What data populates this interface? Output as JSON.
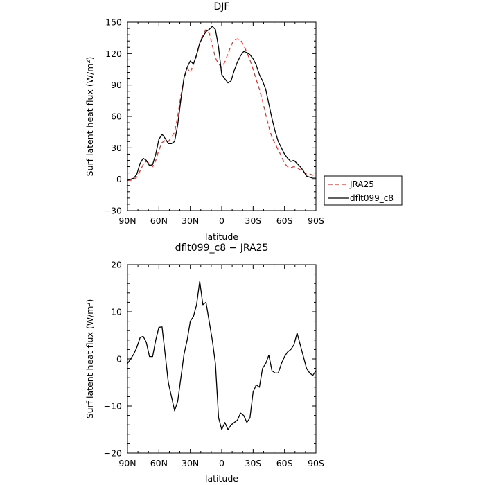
{
  "chart_data": [
    {
      "type": "line",
      "title": "DJF",
      "xlabel": "latitude",
      "ylabel": "Surf latent heat flux (W/m²)",
      "xlim": [
        90,
        -90
      ],
      "ylim": [
        -30,
        150
      ],
      "x_ticks": [
        90,
        60,
        30,
        0,
        -30,
        -60,
        -90
      ],
      "x_tick_labels": [
        "90N",
        "60N",
        "30N",
        "0",
        "30S",
        "60S",
        "90S"
      ],
      "y_ticks": [
        -30,
        0,
        30,
        60,
        90,
        120,
        150
      ],
      "legend": "right",
      "x": [
        90,
        87,
        84,
        81,
        78,
        75,
        72,
        69,
        66,
        63,
        60,
        57,
        54,
        51,
        48,
        45,
        42,
        39,
        36,
        33,
        30,
        27,
        24,
        21,
        18,
        15,
        12,
        9,
        6,
        3,
        0,
        -3,
        -6,
        -9,
        -12,
        -15,
        -18,
        -21,
        -24,
        -27,
        -30,
        -33,
        -36,
        -39,
        -42,
        -45,
        -48,
        -51,
        -54,
        -57,
        -60,
        -63,
        -66,
        -69,
        -72,
        -75,
        -78,
        -81,
        -84,
        -87,
        -90
      ],
      "series": [
        {
          "name": "JRA25",
          "color": "#e8312a",
          "dash": true,
          "values": [
            -1,
            -1,
            0,
            2,
            8,
            14,
            17,
            15,
            12,
            18,
            28,
            35,
            37,
            36,
            40,
            45,
            60,
            80,
            96,
            106,
            102,
            110,
            118,
            130,
            138,
            143,
            140,
            128,
            116,
            110,
            107,
            112,
            120,
            128,
            133,
            134,
            133,
            128,
            121,
            114,
            105,
            95,
            86,
            75,
            62,
            50,
            40,
            34,
            28,
            22,
            15,
            12,
            11,
            12,
            11,
            9,
            7,
            5,
            5,
            4,
            4
          ]
        },
        {
          "name": "dflt099_c8",
          "color": "#000000",
          "dash": false,
          "values": [
            -1,
            0,
            1,
            5,
            15,
            20,
            18,
            13,
            14,
            24,
            38,
            43,
            39,
            34,
            34,
            36,
            52,
            76,
            97,
            107,
            113,
            110,
            119,
            130,
            136,
            141,
            143,
            146,
            143,
            126,
            100,
            96,
            92,
            94,
            104,
            112,
            118,
            122,
            121,
            119,
            115,
            109,
            100,
            94,
            86,
            72,
            58,
            46,
            36,
            30,
            24,
            20,
            17,
            18,
            15,
            12,
            8,
            3,
            2,
            1,
            1
          ]
        }
      ]
    },
    {
      "type": "line",
      "title": "dflt099_c8 − JRA25",
      "xlabel": "latitude",
      "ylabel": "Surf latent heat flux (W/m²)",
      "xlim": [
        90,
        -90
      ],
      "ylim": [
        -20,
        20
      ],
      "x_ticks": [
        90,
        60,
        30,
        0,
        -30,
        -60,
        -90
      ],
      "x_tick_labels": [
        "90N",
        "60N",
        "30N",
        "0",
        "30S",
        "60S",
        "90S"
      ],
      "y_ticks": [
        -20,
        -10,
        0,
        10,
        20
      ],
      "x": [
        90,
        87,
        84,
        81,
        78,
        75,
        72,
        69,
        66,
        63,
        60,
        57,
        54,
        51,
        48,
        45,
        42,
        39,
        36,
        33,
        30,
        27,
        24,
        21,
        18,
        15,
        12,
        9,
        6,
        3,
        0,
        -3,
        -6,
        -9,
        -12,
        -15,
        -18,
        -21,
        -24,
        -27,
        -30,
        -33,
        -36,
        -39,
        -42,
        -45,
        -48,
        -51,
        -54,
        -57,
        -60,
        -63,
        -66,
        -69,
        -72,
        -75,
        -78,
        -81,
        -84,
        -87,
        -90
      ],
      "series": [
        {
          "color": "#000000",
          "values": [
            -1,
            0,
            1,
            2.5,
            4.5,
            4.8,
            3.5,
            0.5,
            0.5,
            4,
            6.7,
            6.8,
            1,
            -5,
            -8,
            -11,
            -9,
            -4,
            1,
            4,
            8,
            9,
            11.5,
            16.5,
            11.5,
            12,
            8,
            4,
            -1,
            -12.5,
            -15,
            -13.5,
            -15,
            -14,
            -13.5,
            -13,
            -11.5,
            -12,
            -13.5,
            -12.5,
            -7,
            -5.5,
            -6,
            -2,
            -1,
            0.8,
            -2.5,
            -3,
            -3,
            -1,
            0.5,
            1.5,
            2,
            3,
            5.5,
            3,
            0.5,
            -2,
            -3,
            -3.5,
            -2.5
          ]
        }
      ]
    }
  ]
}
